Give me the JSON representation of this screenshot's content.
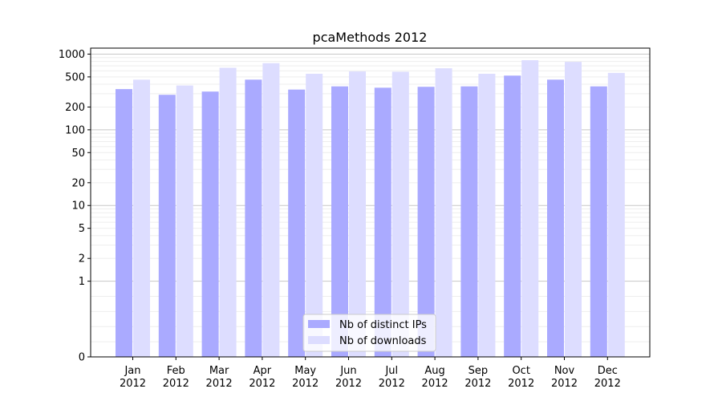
{
  "chart_data": {
    "type": "bar",
    "title": "pcaMethods 2012",
    "xlabel": "",
    "ylabel": "",
    "yscale": "symlog",
    "ylim": [
      0,
      1200
    ],
    "yticks": [
      0,
      1,
      2,
      5,
      10,
      20,
      50,
      100,
      200,
      500,
      1000
    ],
    "categories": [
      [
        "Jan",
        "2012"
      ],
      [
        "Feb",
        "2012"
      ],
      [
        "Mar",
        "2012"
      ],
      [
        "Apr",
        "2012"
      ],
      [
        "May",
        "2012"
      ],
      [
        "Jun",
        "2012"
      ],
      [
        "Jul",
        "2012"
      ],
      [
        "Aug",
        "2012"
      ],
      [
        "Sep",
        "2012"
      ],
      [
        "Oct",
        "2012"
      ],
      [
        "Nov",
        "2012"
      ],
      [
        "Dec",
        "2012"
      ]
    ],
    "series": [
      {
        "name": "Nb of distinct IPs",
        "color": "#aaaaff",
        "values": [
          345,
          290,
          320,
          460,
          340,
          375,
          360,
          370,
          375,
          520,
          460,
          375
        ]
      },
      {
        "name": "Nb of downloads",
        "color": "#ddddff",
        "values": [
          460,
          385,
          660,
          760,
          550,
          590,
          585,
          650,
          550,
          830,
          790,
          565
        ]
      }
    ],
    "grid": true,
    "legend_position": "bottom-center"
  }
}
